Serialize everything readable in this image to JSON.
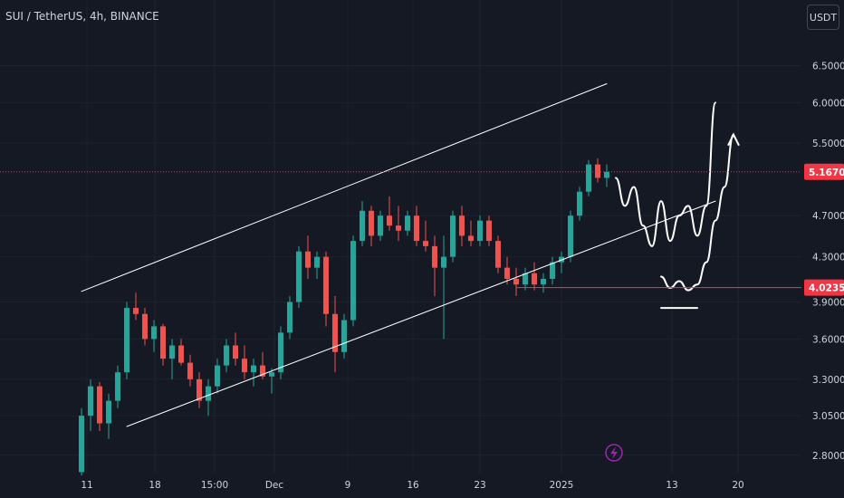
{
  "header": {
    "symbol_title": "SUI / TetherUS, 4h, BINANCE",
    "currency_label": "USDT"
  },
  "colors": {
    "background": "#151924",
    "grid": "#1e222d",
    "up": "#26a69a",
    "down": "#ef5350",
    "channel_line": "#ffffff",
    "drawing": "#ffffff",
    "price_line": "#f23645",
    "axis_text": "#d1d4dc",
    "lightning": "#9c27b0"
  },
  "icons": {
    "alert": "lightning-icon"
  },
  "chart_data": {
    "type": "candlestick",
    "title": "",
    "x_ticks": [
      "11",
      "18",
      "15:00",
      "Dec",
      "9",
      "16",
      "23",
      "2025",
      "13",
      "20"
    ],
    "y_ticks": [
      "6.5000",
      "6.0000",
      "5.5000",
      "4.7000",
      "4.3000",
      "3.9000",
      "3.6000",
      "3.3000",
      "3.0500",
      "2.8000"
    ],
    "ylim": [
      2.75,
      6.9
    ],
    "scale": "log",
    "markers": [
      {
        "label": "5.1670",
        "value": 5.167,
        "style": "current-price"
      },
      {
        "label": "4.0235",
        "value": 4.0235,
        "style": "support-level"
      }
    ],
    "series": [
      {
        "kind": "candles",
        "ohlc": [
          [
            2.7,
            3.1,
            2.68,
            3.05
          ],
          [
            3.05,
            3.3,
            2.95,
            3.25
          ],
          [
            3.25,
            3.28,
            2.95,
            3.0
          ],
          [
            3.0,
            3.2,
            2.9,
            3.15
          ],
          [
            3.15,
            3.4,
            3.1,
            3.35
          ],
          [
            3.35,
            3.9,
            3.3,
            3.85
          ],
          [
            3.85,
            3.98,
            3.75,
            3.8
          ],
          [
            3.8,
            3.85,
            3.55,
            3.6
          ],
          [
            3.6,
            3.75,
            3.5,
            3.7
          ],
          [
            3.7,
            3.72,
            3.4,
            3.45
          ],
          [
            3.45,
            3.6,
            3.3,
            3.55
          ],
          [
            3.55,
            3.6,
            3.4,
            3.42
          ],
          [
            3.42,
            3.48,
            3.25,
            3.3
          ],
          [
            3.3,
            3.35,
            3.1,
            3.15
          ],
          [
            3.15,
            3.3,
            3.05,
            3.25
          ],
          [
            3.25,
            3.45,
            3.2,
            3.4
          ],
          [
            3.4,
            3.6,
            3.35,
            3.55
          ],
          [
            3.55,
            3.65,
            3.4,
            3.45
          ],
          [
            3.45,
            3.55,
            3.3,
            3.35
          ],
          [
            3.35,
            3.45,
            3.25,
            3.4
          ],
          [
            3.4,
            3.5,
            3.3,
            3.32
          ],
          [
            3.32,
            3.38,
            3.2,
            3.35
          ],
          [
            3.35,
            3.7,
            3.3,
            3.65
          ],
          [
            3.65,
            3.95,
            3.6,
            3.9
          ],
          [
            3.9,
            4.4,
            3.85,
            4.35
          ],
          [
            4.35,
            4.5,
            4.1,
            4.2
          ],
          [
            4.2,
            4.35,
            4.1,
            4.3
          ],
          [
            4.3,
            4.35,
            3.7,
            3.8
          ],
          [
            3.8,
            3.95,
            3.35,
            3.5
          ],
          [
            3.5,
            3.8,
            3.45,
            3.75
          ],
          [
            3.75,
            4.5,
            3.7,
            4.45
          ],
          [
            4.45,
            4.85,
            4.4,
            4.75
          ],
          [
            4.75,
            4.8,
            4.4,
            4.5
          ],
          [
            4.5,
            4.75,
            4.45,
            4.7
          ],
          [
            4.7,
            4.9,
            4.55,
            4.6
          ],
          [
            4.6,
            4.8,
            4.45,
            4.55
          ],
          [
            4.55,
            4.75,
            4.5,
            4.7
          ],
          [
            4.7,
            4.8,
            4.4,
            4.45
          ],
          [
            4.45,
            4.65,
            4.35,
            4.4
          ],
          [
            4.4,
            4.5,
            3.95,
            4.2
          ],
          [
            4.2,
            4.5,
            3.6,
            4.3
          ],
          [
            4.3,
            4.75,
            4.25,
            4.7
          ],
          [
            4.7,
            4.8,
            4.4,
            4.5
          ],
          [
            4.5,
            4.65,
            4.4,
            4.45
          ],
          [
            4.45,
            4.7,
            4.4,
            4.65
          ],
          [
            4.65,
            4.7,
            4.4,
            4.45
          ],
          [
            4.45,
            4.5,
            4.15,
            4.2
          ],
          [
            4.2,
            4.3,
            4.05,
            4.1
          ],
          [
            4.1,
            4.2,
            3.95,
            4.05
          ],
          [
            4.05,
            4.2,
            4.0,
            4.15
          ],
          [
            4.15,
            4.25,
            4.0,
            4.05
          ],
          [
            4.05,
            4.15,
            3.98,
            4.1
          ],
          [
            4.1,
            4.3,
            4.05,
            4.25
          ],
          [
            4.25,
            4.35,
            4.15,
            4.3
          ],
          [
            4.3,
            4.75,
            4.25,
            4.7
          ],
          [
            4.7,
            5.0,
            4.65,
            4.95
          ],
          [
            4.95,
            5.3,
            4.9,
            5.25
          ],
          [
            5.25,
            5.32,
            5.05,
            5.1
          ],
          [
            5.1,
            5.25,
            5.0,
            5.167
          ]
        ]
      },
      {
        "kind": "upper-channel-line",
        "points": [
          [
            0,
            3.99
          ],
          [
            58,
            6.25
          ]
        ]
      },
      {
        "kind": "lower-channel-line",
        "points": [
          [
            5,
            2.98
          ],
          [
            70,
            4.85
          ]
        ]
      },
      {
        "kind": "projection-up-path",
        "points": [
          [
            59,
            5.1
          ],
          [
            60,
            4.8
          ],
          [
            61,
            5.0
          ],
          [
            62,
            4.6
          ],
          [
            63,
            4.4
          ],
          [
            64,
            4.85
          ],
          [
            65,
            4.45
          ],
          [
            66,
            4.7
          ],
          [
            67,
            4.8
          ],
          [
            68,
            4.5
          ],
          [
            69,
            4.8
          ],
          [
            70,
            6.0
          ]
        ]
      },
      {
        "kind": "projection-alt-path",
        "points": [
          [
            64,
            4.12
          ],
          [
            65,
            4.02
          ],
          [
            66,
            4.08
          ],
          [
            67,
            4.0
          ],
          [
            68,
            4.05
          ],
          [
            69,
            4.25
          ],
          [
            70,
            4.65
          ],
          [
            71,
            5.0
          ],
          [
            72,
            5.6
          ]
        ]
      },
      {
        "kind": "support-mark",
        "points": [
          [
            64,
            3.85
          ],
          [
            68,
            3.85
          ]
        ]
      }
    ]
  }
}
